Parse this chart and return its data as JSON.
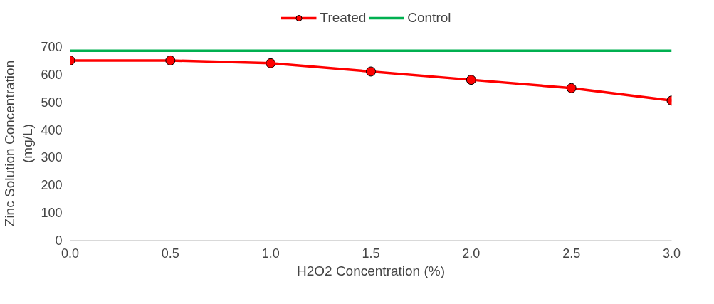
{
  "chart_data": {
    "type": "line",
    "xlabel": "H2O2 Concentration (%)",
    "ylabel": "Zinc Solution Concentration\n(mg/L)",
    "x": [
      0.0,
      0.5,
      1.0,
      1.5,
      2.0,
      2.5,
      3.0
    ],
    "series": [
      {
        "name": "Treated",
        "color": "#ff0000",
        "marker": "circle",
        "values": [
          650,
          650,
          640,
          610,
          580,
          550,
          505
        ]
      },
      {
        "name": "Control",
        "color": "#00b050",
        "marker": "none",
        "values": [
          685,
          685,
          685,
          685,
          685,
          685,
          685
        ]
      }
    ],
    "xlim": [
      0,
      3
    ],
    "xticks": [
      {
        "value": 0,
        "label": "0.0"
      },
      {
        "value": 0.5,
        "label": "0.5"
      },
      {
        "value": 1,
        "label": "1.0"
      },
      {
        "value": 1.5,
        "label": "1.5"
      },
      {
        "value": 2,
        "label": "2.0"
      },
      {
        "value": 2.5,
        "label": "2.5"
      },
      {
        "value": 3,
        "label": "3.0"
      }
    ],
    "ylim": [
      0,
      700
    ],
    "yticks": [
      0,
      100,
      200,
      300,
      400,
      500,
      600,
      700
    ],
    "grid": false,
    "legend": "top",
    "line_style": "solid"
  }
}
